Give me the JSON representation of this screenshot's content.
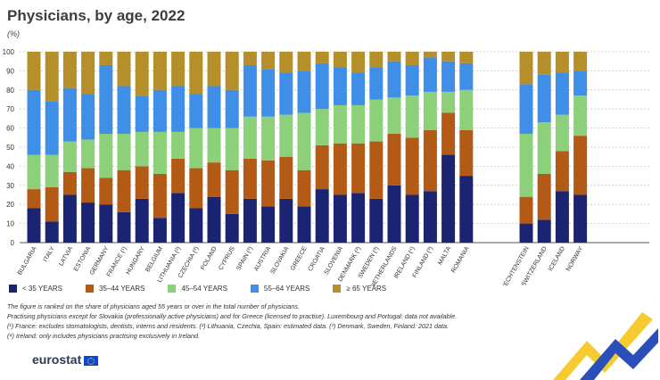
{
  "title": "Physicians, by age, 2022",
  "unit": "(%)",
  "colors": {
    "lt35": "#1a2473",
    "a35_44": "#b35a16",
    "a45_54": "#8cd07a",
    "a55_64": "#3f8ee8",
    "ge65": "#b58f2a",
    "grid": "#c8c8c8",
    "axis": "#555555"
  },
  "legend": [
    {
      "label": "< 35 YEARS",
      "color": "#1a2473"
    },
    {
      "label": "35–44 YEARS",
      "color": "#b35a16"
    },
    {
      "label": "45–54 YEARS",
      "color": "#8cd07a"
    },
    {
      "label": "55–64 YEARS",
      "color": "#3f8ee8"
    },
    {
      "label": "≥ 65 YEARS",
      "color": "#b58f2a"
    }
  ],
  "chart_data": {
    "type": "bar",
    "stacked": true,
    "title": "Physicians, by age, 2022",
    "ylabel": "(%)",
    "ylim": [
      0,
      100
    ],
    "yticks": [
      0,
      10,
      20,
      30,
      40,
      50,
      60,
      70,
      80,
      90,
      100
    ],
    "group_break_after": "Romania",
    "categories": [
      "Bulgaria",
      "Italy",
      "Latvia",
      "Estonia",
      "Germany",
      "France (¹)",
      "Hungary",
      "Belgium",
      "Lithuania (²)",
      "Czechia (²)",
      "Poland",
      "Cyprus",
      "Spain (²)",
      "Austria",
      "Slovakia",
      "Greece",
      "Croatia",
      "Slovenia",
      "Denmark (³)",
      "Sweden (³)",
      "Netherlands",
      "Ireland (⁴)",
      "Finland (³)",
      "Malta",
      "Romania",
      "Liechtenstein",
      "Switzerland",
      "Iceland",
      "Norway"
    ],
    "series": [
      {
        "name": "< 35 years",
        "values": [
          18,
          11,
          25,
          21,
          20,
          16,
          23,
          13,
          26,
          18,
          24,
          15,
          23,
          19,
          23,
          19,
          28,
          25,
          26,
          23,
          30,
          25,
          27,
          46,
          35,
          10,
          12,
          27,
          25
        ]
      },
      {
        "name": "35–44 years",
        "values": [
          10,
          18,
          12,
          18,
          14,
          22,
          17,
          23,
          18,
          21,
          18,
          23,
          21,
          24,
          22,
          19,
          23,
          27,
          26,
          30,
          27,
          30,
          32,
          22,
          24,
          14,
          24,
          21,
          31
        ]
      },
      {
        "name": "45–54 years",
        "values": [
          18,
          17,
          16,
          15,
          23,
          19,
          18,
          22,
          14,
          21,
          18,
          22,
          22,
          23,
          22,
          30,
          19,
          20,
          20,
          22,
          19,
          22,
          20,
          11,
          21,
          33,
          27,
          19,
          21
        ]
      },
      {
        "name": "55–64 years",
        "values": [
          34,
          28,
          28,
          24,
          36,
          25,
          19,
          22,
          24,
          18,
          22,
          20,
          27,
          25,
          22,
          22,
          24,
          20,
          17,
          17,
          19,
          16,
          18,
          16,
          14,
          26,
          25,
          22,
          13
        ]
      },
      {
        "name": "≥ 65 years",
        "values": [
          20,
          26,
          19,
          22,
          7,
          18,
          23,
          20,
          18,
          22,
          18,
          20,
          7,
          9,
          11,
          10,
          6,
          8,
          11,
          8,
          5,
          7,
          3,
          5,
          6,
          17,
          12,
          11,
          10
        ]
      }
    ]
  },
  "notes": {
    "line1": "The figure is ranked on the share of physicians aged 55 years or over in the total number of physicians.",
    "line2": "Practising physicians except for Slovakia (professionally active physicians) and for Greece (licensed to practise). Luxembourg and Portugal: data not available.",
    "line3": "(¹) France: excludes stomatologists, dentists, interns and residents. (²) Lithuania, Czechia, Spain: estimated data. (³) Denmark, Sweden, Finland: 2021 data.",
    "line4": "(⁴) Ireland: only includes physicians practising exclusively in Ireland."
  },
  "brand": {
    "name": "eurostat",
    "icon": "eu-flag-icon"
  }
}
